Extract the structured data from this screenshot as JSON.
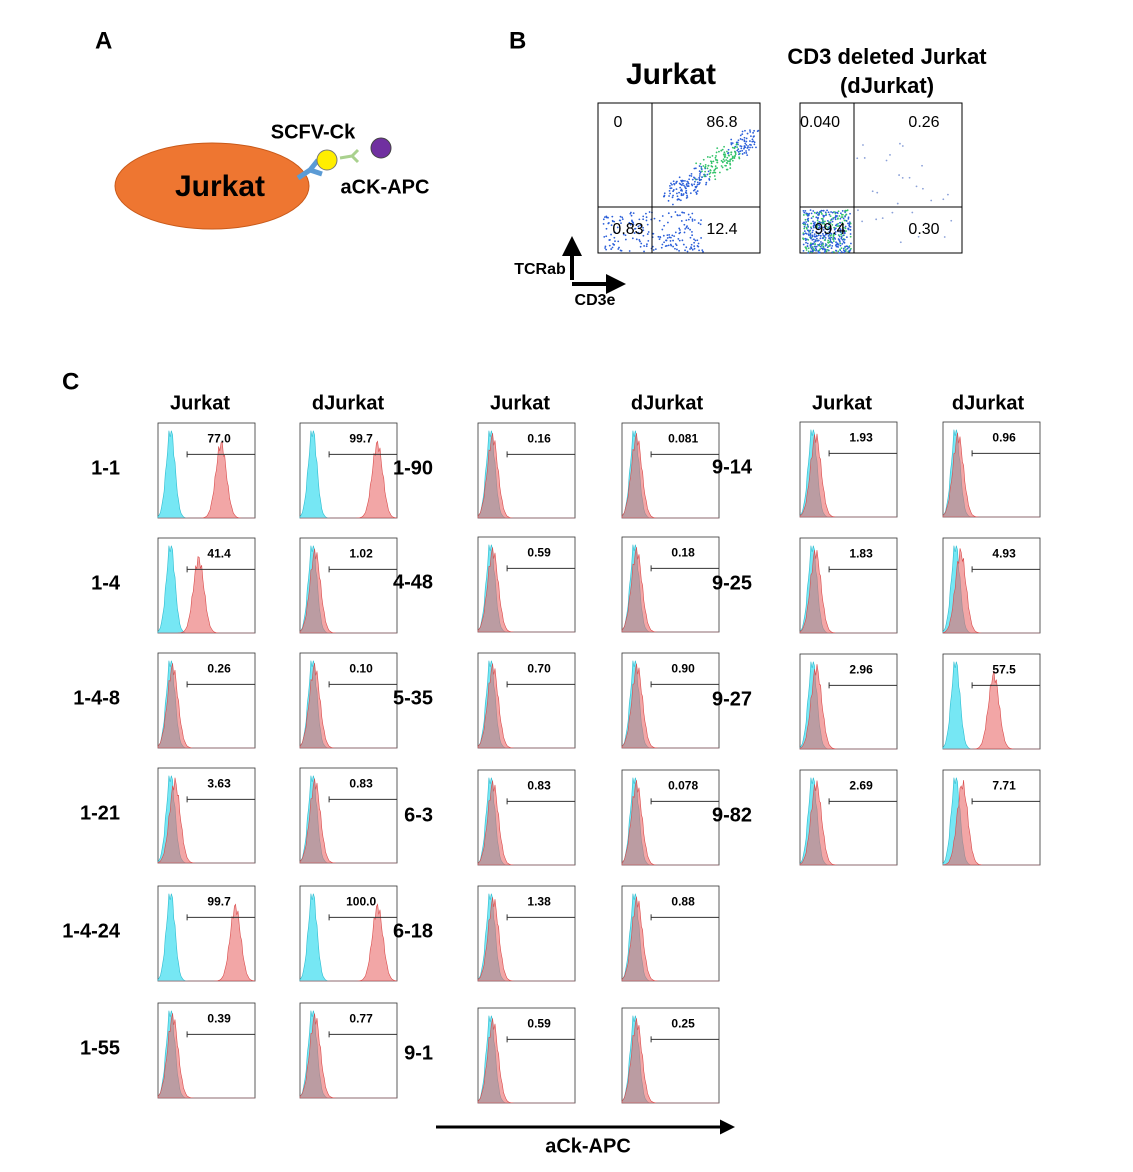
{
  "panel_a": {
    "label": "A",
    "cell": "Jurkat",
    "antibody": "SCFV-Ck",
    "detector": "aCK-APC"
  },
  "panel_b": {
    "label": "B",
    "y_axis": "TCRab",
    "x_axis": "CD3e",
    "plots": [
      {
        "title_lines": [
          "Jurkat"
        ],
        "quadrants": [
          "0",
          "86.8",
          "0.83",
          "12.4"
        ]
      },
      {
        "title_lines": [
          "CD3 deleted Jurkat",
          "(dJurkat)"
        ],
        "quadrants": [
          "0.040",
          "0.26",
          "99.4",
          "0.30"
        ]
      }
    ]
  },
  "panel_c": {
    "label": "C",
    "x_axis": "aCk-APC",
    "groups": [
      {
        "headers": [
          "Jurkat",
          "dJurkat"
        ],
        "rows": [
          {
            "clone": "1-1",
            "values": [
              "77.0",
              "99.7"
            ]
          },
          {
            "clone": "1-4",
            "values": [
              "41.4",
              "1.02"
            ]
          },
          {
            "clone": "1-4-8",
            "values": [
              "0.26",
              "0.10"
            ]
          },
          {
            "clone": "1-21",
            "values": [
              "3.63",
              "0.83"
            ]
          },
          {
            "clone": "1-4-24",
            "values": [
              "99.7",
              "100.0"
            ]
          },
          {
            "clone": "1-55",
            "values": [
              "0.39",
              "0.77"
            ]
          }
        ]
      },
      {
        "headers": [
          "Jurkat",
          "dJurkat"
        ],
        "rows": [
          {
            "clone": "1-90",
            "values": [
              "0.16",
              "0.081"
            ]
          },
          {
            "clone": "4-48",
            "values": [
              "0.59",
              "0.18"
            ]
          },
          {
            "clone": "5-35",
            "values": [
              "0.70",
              "0.90"
            ]
          },
          {
            "clone": "6-3",
            "values": [
              "0.83",
              "0.078"
            ]
          },
          {
            "clone": "6-18",
            "values": [
              "1.38",
              "0.88"
            ]
          },
          {
            "clone": "9-1",
            "values": [
              "0.59",
              "0.25"
            ]
          }
        ]
      },
      {
        "headers": [
          "Jurkat",
          "dJurkat"
        ],
        "rows": [
          {
            "clone": "9-14",
            "values": [
              "1.93",
              "0.96"
            ]
          },
          {
            "clone": "9-25",
            "values": [
              "1.83",
              "4.93"
            ]
          },
          {
            "clone": "9-27",
            "values": [
              "2.96",
              "57.5"
            ]
          },
          {
            "clone": "9-82",
            "values": [
              "2.69",
              "7.71"
            ]
          }
        ]
      }
    ]
  }
}
